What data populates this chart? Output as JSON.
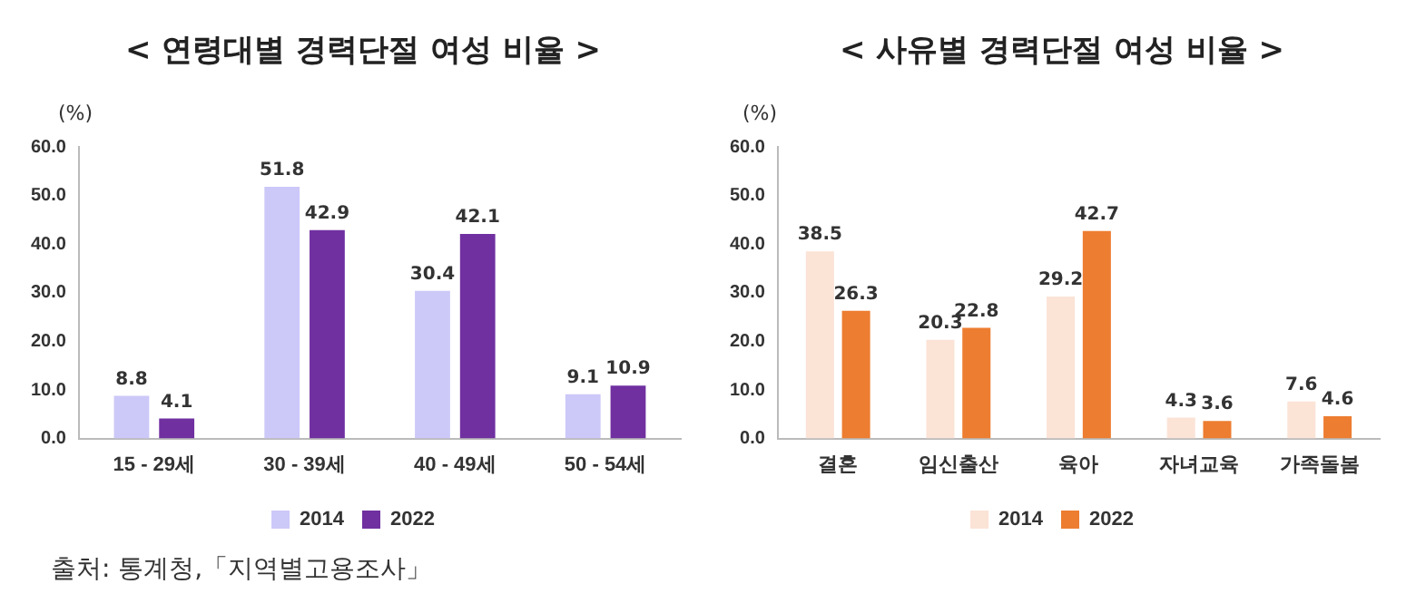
{
  "chart_data": [
    {
      "type": "bar",
      "title": "< 연령대별 경력단절 여성 비율 >",
      "ylabel": "(%)",
      "categories": [
        "15 - 29세",
        "30 - 39세",
        "40 - 49세",
        "50 - 54세"
      ],
      "series": [
        {
          "name": "2014",
          "color": "#ccc8f8",
          "values": [
            8.8,
            51.8,
            30.4,
            9.1
          ]
        },
        {
          "name": "2022",
          "color": "#7030a0",
          "values": [
            4.1,
            42.9,
            42.1,
            10.9
          ]
        }
      ],
      "ylim": [
        0,
        60
      ],
      "yticks": [
        {
          "value": 0,
          "label": "0.0"
        },
        {
          "value": 10,
          "label": "10.0"
        },
        {
          "value": 20,
          "label": "20.0"
        },
        {
          "value": 30,
          "label": "30.0"
        },
        {
          "value": 40,
          "label": "40.0"
        },
        {
          "value": 50,
          "label": "50.0"
        },
        {
          "value": 60,
          "label": "60.0"
        }
      ],
      "grid": false,
      "legend": "bottom",
      "data_labels": true,
      "annotations": [
        "출처: 통계청,「지역별고용조사」"
      ]
    },
    {
      "type": "bar",
      "title": "< 사유별 경력단절 여성 비율 >",
      "ylabel": "(%)",
      "categories": [
        "결혼",
        "임신출산",
        "육아",
        "자녀교육",
        "가족돌봄"
      ],
      "series": [
        {
          "name": "2014",
          "color": "#fbe3d6",
          "values": [
            38.5,
            20.3,
            29.2,
            4.3,
            7.6
          ]
        },
        {
          "name": "2022",
          "color": "#ed7d31",
          "values": [
            26.3,
            22.8,
            42.7,
            3.6,
            4.6
          ]
        }
      ],
      "ylim": [
        0,
        60
      ],
      "yticks": [
        {
          "value": 0,
          "label": "0.0"
        },
        {
          "value": 10,
          "label": "10.0"
        },
        {
          "value": 20,
          "label": "20.0"
        },
        {
          "value": 30,
          "label": "30.0"
        },
        {
          "value": 40,
          "label": "40.0"
        },
        {
          "value": 50,
          "label": "50.0"
        },
        {
          "value": 60,
          "label": "60.0"
        }
      ],
      "grid": false,
      "legend": "bottom",
      "data_labels": true
    }
  ]
}
